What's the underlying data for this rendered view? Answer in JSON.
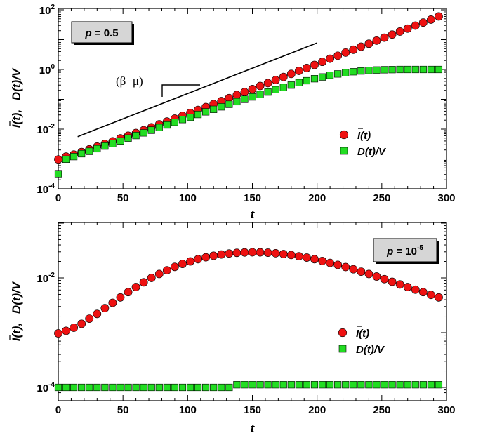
{
  "colors": {
    "infected": "#ee1111",
    "discovered": "#22dd22",
    "marker_edge": "#000000",
    "label_box": "#d6d6d6"
  },
  "chart_data": [
    {
      "type": "scatter",
      "x_scale": "linear",
      "y_scale": "log",
      "xlim": [
        0,
        300
      ],
      "ylim": [
        0.0001,
        100
      ],
      "x_ticks": [
        "0",
        "50",
        "100",
        "150",
        "200",
        "250",
        "300"
      ],
      "y_ticks": [
        {
          "base": "10",
          "exp": "-4"
        },
        {
          "base": "10",
          "exp": "-2"
        },
        {
          "base": "10",
          "exp": "0"
        },
        {
          "base": "10",
          "exp": "2"
        }
      ],
      "xlabel": "t",
      "ylabel_left": "I(t),",
      "ylabel_right": "D(t)/V",
      "label_box": "p = 0.5",
      "annotation": "(β−μ)",
      "legend": "middle-right",
      "grid": false,
      "guide_line": {
        "x": [
          15,
          200
        ],
        "y": [
          0.0056,
          7.8
        ]
      },
      "series": [
        {
          "name": "I(t)",
          "marker": "circle",
          "x": [
            0,
            6,
            12,
            18,
            24,
            30,
            36,
            42,
            48,
            54,
            60,
            66,
            72,
            78,
            84,
            90,
            96,
            102,
            108,
            114,
            120,
            126,
            132,
            138,
            144,
            150,
            156,
            162,
            168,
            174,
            180,
            186,
            192,
            198,
            204,
            210,
            216,
            222,
            228,
            234,
            240,
            246,
            252,
            258,
            264,
            270,
            276,
            282,
            288,
            294
          ],
          "y": [
            0.00096,
            0.0012,
            0.0014,
            0.0017,
            0.0021,
            0.0026,
            0.0032,
            0.0039,
            0.0049,
            0.006,
            0.0074,
            0.0092,
            0.0115,
            0.0145,
            0.018,
            0.0225,
            0.028,
            0.035,
            0.044,
            0.055,
            0.069,
            0.087,
            0.11,
            0.14,
            0.175,
            0.22,
            0.28,
            0.35,
            0.44,
            0.56,
            0.71,
            0.9,
            1.12,
            1.42,
            1.8,
            2.3,
            2.9,
            3.7,
            4.6,
            5.8,
            7.3,
            9.3,
            11.7,
            14.8,
            18.7,
            23.5,
            29.6,
            37.3,
            47,
            60
          ]
        },
        {
          "name": "D(t)/V",
          "marker": "square",
          "x": [
            0,
            6,
            12,
            18,
            24,
            30,
            36,
            42,
            48,
            54,
            60,
            66,
            72,
            78,
            84,
            90,
            96,
            102,
            108,
            114,
            120,
            126,
            132,
            138,
            144,
            150,
            156,
            162,
            168,
            174,
            180,
            186,
            192,
            198,
            204,
            210,
            216,
            222,
            228,
            234,
            240,
            246,
            252,
            258,
            264,
            270,
            276,
            282,
            288,
            294
          ],
          "y": [
            0.00032,
            0.00098,
            0.0012,
            0.0015,
            0.0018,
            0.0022,
            0.0027,
            0.0033,
            0.004,
            0.005,
            0.0061,
            0.0075,
            0.0092,
            0.0113,
            0.0138,
            0.017,
            0.021,
            0.025,
            0.031,
            0.038,
            0.046,
            0.056,
            0.068,
            0.083,
            0.1,
            0.12,
            0.145,
            0.175,
            0.21,
            0.25,
            0.3,
            0.36,
            0.42,
            0.49,
            0.56,
            0.64,
            0.71,
            0.78,
            0.84,
            0.89,
            0.93,
            0.96,
            0.98,
            0.99,
            1.0,
            1.0,
            1.0,
            1.0,
            1.0,
            1.0
          ]
        }
      ]
    },
    {
      "type": "scatter",
      "x_scale": "linear",
      "y_scale": "log",
      "xlim": [
        0,
        300
      ],
      "ylim": [
        8e-05,
        0.1
      ],
      "x_ticks": [
        "0",
        "50",
        "100",
        "150",
        "200",
        "250",
        "300"
      ],
      "y_ticks": [
        {
          "base": "10",
          "exp": "-4"
        },
        {
          "base": "10",
          "exp": "-2"
        }
      ],
      "xlabel": "t",
      "ylabel_left": "I(t),",
      "ylabel_right": "D(t)/V",
      "label_box": {
        "base": "p = 10",
        "exp": "-5"
      },
      "legend": "middle-right",
      "grid": false,
      "series": [
        {
          "name": "I(t)",
          "marker": "circle",
          "x": [
            0,
            6,
            12,
            18,
            24,
            30,
            36,
            42,
            48,
            54,
            60,
            66,
            72,
            78,
            84,
            90,
            96,
            102,
            108,
            114,
            120,
            126,
            132,
            138,
            144,
            150,
            156,
            162,
            168,
            174,
            180,
            186,
            192,
            198,
            204,
            210,
            216,
            222,
            228,
            234,
            240,
            246,
            252,
            258,
            264,
            270,
            276,
            282,
            288,
            294
          ],
          "y": [
            0.00097,
            0.00108,
            0.00123,
            0.00145,
            0.0018,
            0.0022,
            0.0028,
            0.0035,
            0.0044,
            0.0055,
            0.0068,
            0.0083,
            0.01,
            0.0118,
            0.0138,
            0.0159,
            0.018,
            0.02,
            0.022,
            0.0238,
            0.0254,
            0.0268,
            0.0279,
            0.0287,
            0.0292,
            0.0294,
            0.0293,
            0.0289,
            0.0282,
            0.0273,
            0.0262,
            0.0249,
            0.0235,
            0.022,
            0.0204,
            0.0188,
            0.0173,
            0.0158,
            0.0144,
            0.013,
            0.0118,
            0.0106,
            0.0095,
            0.0085,
            0.0076,
            0.0068,
            0.0061,
            0.0055,
            0.0049,
            0.0044
          ]
        },
        {
          "name": "D(t)/V",
          "marker": "square",
          "x": [
            0,
            6,
            12,
            18,
            24,
            30,
            36,
            42,
            48,
            54,
            60,
            66,
            72,
            78,
            84,
            90,
            96,
            102,
            108,
            114,
            120,
            126,
            132,
            138,
            144,
            150,
            156,
            162,
            168,
            174,
            180,
            186,
            192,
            198,
            204,
            210,
            216,
            222,
            228,
            234,
            240,
            246,
            252,
            258,
            264,
            270,
            276,
            282,
            288,
            294
          ],
          "y": [
            0.0001,
            0.0001,
            0.0001,
            0.0001,
            0.0001,
            0.0001,
            0.0001,
            0.0001,
            0.0001,
            0.0001,
            0.0001,
            0.0001,
            0.0001,
            0.0001,
            0.0001,
            0.0001,
            0.0001,
            0.0001,
            0.0001,
            0.0001,
            0.0001,
            0.0001,
            0.0001,
            0.000112,
            0.000112,
            0.000112,
            0.000112,
            0.000112,
            0.000112,
            0.000112,
            0.000112,
            0.000112,
            0.000112,
            0.000112,
            0.000112,
            0.000112,
            0.000112,
            0.000112,
            0.000112,
            0.000112,
            0.000112,
            0.000112,
            0.000112,
            0.000112,
            0.000112,
            0.000112,
            0.000112,
            0.000112,
            0.000112,
            0.000112
          ]
        }
      ]
    }
  ]
}
